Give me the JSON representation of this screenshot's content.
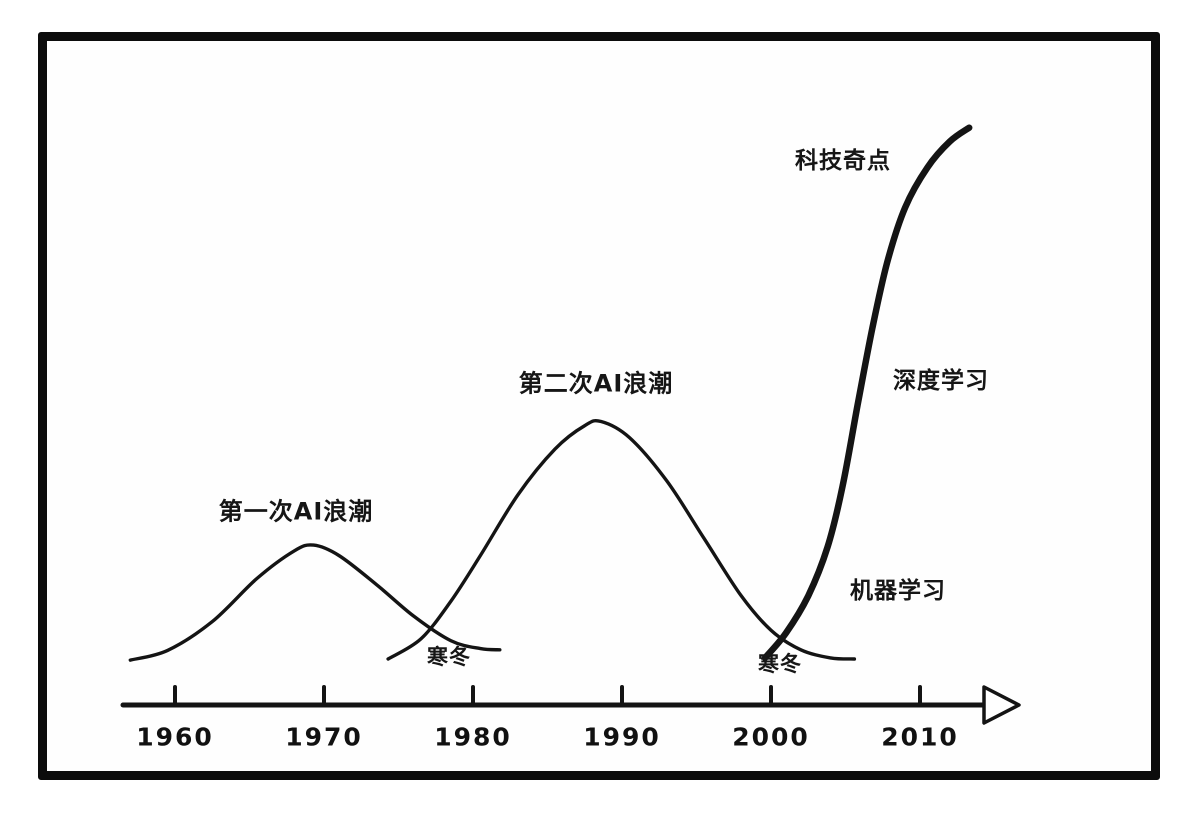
{
  "chart_data": {
    "type": "line",
    "title": "",
    "xlabel": "",
    "ylabel": "",
    "x_range": [
      1956,
      2014.5
    ],
    "y_range": [
      0,
      105
    ],
    "grid": false,
    "legend": "none",
    "x_axis_arrow": true,
    "ink_color": "#141414",
    "background_color": "#ffffff",
    "x_ticks": [
      {
        "label": "1960",
        "year": 1960
      },
      {
        "label": "1970",
        "year": 1970
      },
      {
        "label": "1980",
        "year": 1980
      },
      {
        "label": "1990",
        "year": 1990
      },
      {
        "label": "2000",
        "year": 2000
      },
      {
        "label": "2010",
        "year": 2010
      }
    ],
    "series": [
      {
        "name": "第一次AI浪潮",
        "emphasis": false,
        "points": [
          [
            1957,
            7.8
          ],
          [
            1959.5,
            9.5
          ],
          [
            1962.5,
            14.5
          ],
          [
            1965.5,
            22
          ],
          [
            1968,
            26.8
          ],
          [
            1969.3,
            27.8
          ],
          [
            1971,
            26
          ],
          [
            1973.5,
            21
          ],
          [
            1976,
            15.5
          ],
          [
            1978.5,
            11.2
          ],
          [
            1980.5,
            9.8
          ],
          [
            1981.8,
            9.6
          ]
        ]
      },
      {
        "name": "第二次AI浪潮",
        "emphasis": false,
        "points": [
          [
            1974.3,
            8
          ],
          [
            1976.5,
            11.5
          ],
          [
            1978.5,
            18
          ],
          [
            1980.5,
            26
          ],
          [
            1983,
            36.5
          ],
          [
            1985.5,
            44.5
          ],
          [
            1987.5,
            48.6
          ],
          [
            1988.6,
            49.3
          ],
          [
            1990.5,
            46.5
          ],
          [
            1993,
            39
          ],
          [
            1995.5,
            29
          ],
          [
            1998,
            19
          ],
          [
            2000,
            13
          ],
          [
            2002,
            9.6
          ],
          [
            2004,
            8.2
          ],
          [
            2005.6,
            8
          ]
        ]
      },
      {
        "name": "科技奇点",
        "emphasis": true,
        "points": [
          [
            1999.6,
            8.2
          ],
          [
            2001,
            12.5
          ],
          [
            2002.5,
            19
          ],
          [
            2003.8,
            27.5
          ],
          [
            2004.8,
            38
          ],
          [
            2005.8,
            52
          ],
          [
            2006.8,
            65.5
          ],
          [
            2007.8,
            77
          ],
          [
            2009,
            86.5
          ],
          [
            2010.5,
            93.5
          ],
          [
            2012,
            98
          ],
          [
            2013.3,
            100.4
          ]
        ]
      }
    ],
    "annotations": [
      {
        "text": "第一次AI浪潮"
      },
      {
        "text": "第二次AI浪潮"
      },
      {
        "text": "寒冬"
      },
      {
        "text": "寒冬"
      },
      {
        "text": "机器学习"
      },
      {
        "text": "深度学习"
      },
      {
        "text": "科技奇点"
      }
    ]
  }
}
